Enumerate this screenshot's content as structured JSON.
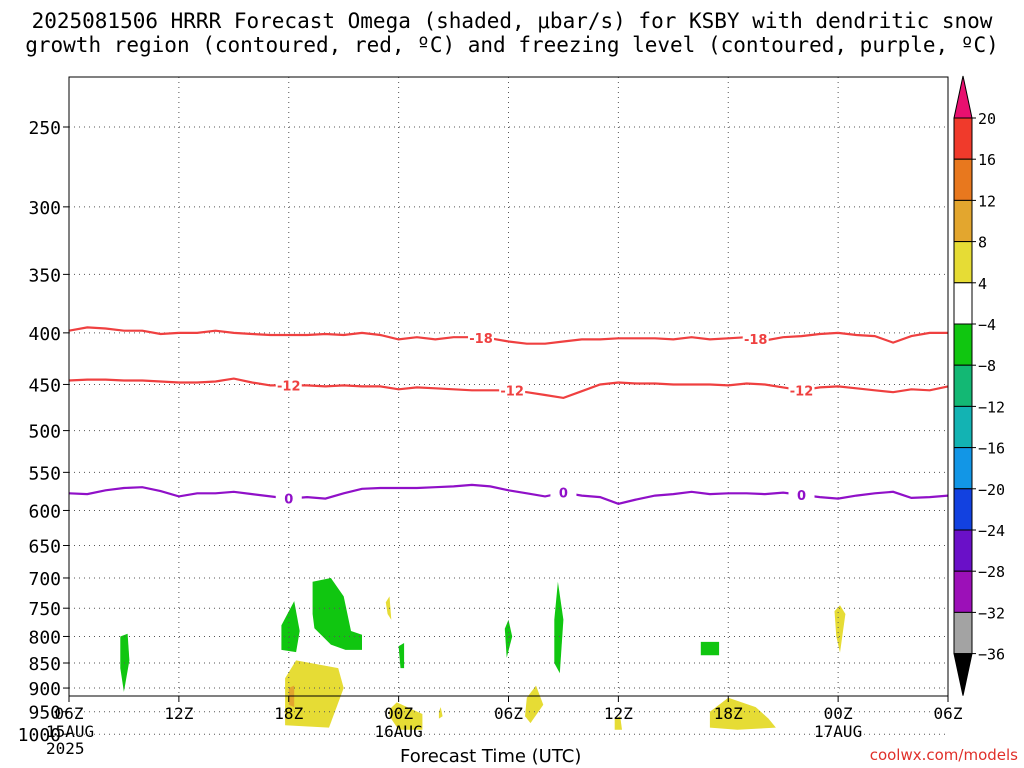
{
  "title": {
    "line1": "2025081506 HRRR Forecast Omega (shaded, μbar/s) for KSBY with dendritic snow",
    "line2": "growth region (contoured, red, ºC) and freezing level (contoured, purple, ºC)"
  },
  "xlabel": "Forecast Time (UTC)",
  "credit": "coolwx.com/models",
  "chart_data": {
    "type": "heatmap",
    "x_ticks": [
      {
        "hour": 0,
        "label": "06Z",
        "sub1": "15AUG",
        "sub2": "2025"
      },
      {
        "hour": 6,
        "label": "12Z"
      },
      {
        "hour": 12,
        "label": "18Z"
      },
      {
        "hour": 18,
        "label": "00Z",
        "sub1": "16AUG"
      },
      {
        "hour": 24,
        "label": "06Z"
      },
      {
        "hour": 30,
        "label": "12Z"
      },
      {
        "hour": 36,
        "label": "18Z"
      },
      {
        "hour": 42,
        "label": "00Z",
        "sub1": "17AUG"
      },
      {
        "hour": 48,
        "label": "06Z"
      }
    ],
    "xlim": [
      0,
      48
    ],
    "y_levels": [
      250,
      300,
      350,
      400,
      450,
      500,
      550,
      600,
      650,
      700,
      750,
      800,
      850,
      900,
      950,
      1000
    ],
    "ylabel_unit": "hPa",
    "ylim": [
      200,
      1025
    ],
    "y_scale": "log",
    "grid": true,
    "colorbar": {
      "ticks": [
        "20",
        "16",
        "12",
        "8",
        "4",
        "−4",
        "−8",
        "−12",
        "−16",
        "−20",
        "−24",
        "−28",
        "−32",
        "−36"
      ],
      "colors": [
        "#e8106f",
        "#f03a2b",
        "#e8781e",
        "#e3a62e",
        "#e6dc35",
        "#ffffff",
        "#10c610",
        "#13b874",
        "#13b3b3",
        "#1296e6",
        "#1241e0",
        "#6a10c8",
        "#9c10b8",
        "#a3a3a3",
        "#000000"
      ]
    },
    "contours": [
      {
        "color": "#ef4040",
        "label": "-18",
        "label_x": [
          22.5,
          37.5
        ],
        "points": [
          [
            0,
            398
          ],
          [
            1,
            395
          ],
          [
            2,
            396
          ],
          [
            3,
            398
          ],
          [
            4,
            398
          ],
          [
            5,
            401
          ],
          [
            6,
            400
          ],
          [
            7,
            400
          ],
          [
            8,
            398
          ],
          [
            9,
            400
          ],
          [
            10,
            401
          ],
          [
            11,
            402
          ],
          [
            12,
            402
          ],
          [
            13,
            402
          ],
          [
            14,
            401
          ],
          [
            15,
            402
          ],
          [
            16,
            400
          ],
          [
            17,
            402
          ],
          [
            18,
            406
          ],
          [
            19,
            404
          ],
          [
            20,
            406
          ],
          [
            21,
            404
          ],
          [
            22,
            404
          ],
          [
            23,
            405
          ],
          [
            24,
            408
          ],
          [
            25,
            410
          ],
          [
            26,
            410
          ],
          [
            27,
            408
          ],
          [
            28,
            406
          ],
          [
            29,
            406
          ],
          [
            30,
            405
          ],
          [
            31,
            405
          ],
          [
            32,
            405
          ],
          [
            33,
            406
          ],
          [
            34,
            404
          ],
          [
            35,
            406
          ],
          [
            36,
            405
          ],
          [
            37,
            404
          ],
          [
            38,
            407
          ],
          [
            39,
            404
          ],
          [
            40,
            403
          ],
          [
            41,
            401
          ],
          [
            42,
            400
          ],
          [
            43,
            402
          ],
          [
            44,
            403
          ],
          [
            45,
            409
          ],
          [
            46,
            403
          ],
          [
            47,
            400
          ],
          [
            48,
            400
          ]
        ]
      },
      {
        "color": "#ef4040",
        "label": "-12",
        "label_x": [
          12.0,
          24.2,
          40.0
        ],
        "points": [
          [
            0,
            446
          ],
          [
            1,
            445
          ],
          [
            2,
            445
          ],
          [
            3,
            446
          ],
          [
            4,
            446
          ],
          [
            5,
            447
          ],
          [
            6,
            448
          ],
          [
            7,
            448
          ],
          [
            8,
            447
          ],
          [
            9,
            444
          ],
          [
            10,
            448
          ],
          [
            11,
            451
          ],
          [
            12,
            451
          ],
          [
            13,
            451
          ],
          [
            14,
            452
          ],
          [
            15,
            451
          ],
          [
            16,
            452
          ],
          [
            17,
            452
          ],
          [
            18,
            455
          ],
          [
            19,
            453
          ],
          [
            20,
            454
          ],
          [
            21,
            455
          ],
          [
            22,
            456
          ],
          [
            23,
            456
          ],
          [
            24,
            456
          ],
          [
            25,
            458
          ],
          [
            26,
            461
          ],
          [
            27,
            464
          ],
          [
            28,
            457
          ],
          [
            29,
            450
          ],
          [
            30,
            448
          ],
          [
            31,
            449
          ],
          [
            32,
            449
          ],
          [
            33,
            450
          ],
          [
            34,
            450
          ],
          [
            35,
            450
          ],
          [
            36,
            451
          ],
          [
            37,
            449
          ],
          [
            38,
            450
          ],
          [
            39,
            453
          ],
          [
            40,
            456
          ],
          [
            41,
            453
          ],
          [
            42,
            452
          ],
          [
            43,
            454
          ],
          [
            44,
            456
          ],
          [
            45,
            458
          ],
          [
            46,
            455
          ],
          [
            47,
            456
          ],
          [
            48,
            452
          ]
        ]
      },
      {
        "color": "#9010c8",
        "label": "0",
        "label_x": [
          12.0,
          27.0,
          40.0
        ],
        "points": [
          [
            0,
            577
          ],
          [
            1,
            578
          ],
          [
            2,
            573
          ],
          [
            3,
            570
          ],
          [
            4,
            569
          ],
          [
            5,
            574
          ],
          [
            6,
            581
          ],
          [
            7,
            577
          ],
          [
            8,
            577
          ],
          [
            9,
            575
          ],
          [
            10,
            578
          ],
          [
            11,
            581
          ],
          [
            12,
            584
          ],
          [
            13,
            582
          ],
          [
            14,
            584
          ],
          [
            15,
            577
          ],
          [
            16,
            571
          ],
          [
            17,
            570
          ],
          [
            18,
            570
          ],
          [
            19,
            570
          ],
          [
            20,
            569
          ],
          [
            21,
            568
          ],
          [
            22,
            566
          ],
          [
            23,
            568
          ],
          [
            24,
            573
          ],
          [
            25,
            577
          ],
          [
            26,
            581
          ],
          [
            27,
            576
          ],
          [
            28,
            580
          ],
          [
            29,
            582
          ],
          [
            30,
            591
          ],
          [
            31,
            585
          ],
          [
            32,
            580
          ],
          [
            33,
            578
          ],
          [
            34,
            575
          ],
          [
            35,
            578
          ],
          [
            36,
            577
          ],
          [
            37,
            577
          ],
          [
            38,
            578
          ],
          [
            39,
            576
          ],
          [
            40,
            579
          ],
          [
            41,
            582
          ],
          [
            42,
            584
          ],
          [
            43,
            580
          ],
          [
            44,
            577
          ],
          [
            45,
            575
          ],
          [
            46,
            583
          ],
          [
            47,
            582
          ],
          [
            48,
            580
          ]
        ]
      }
    ],
    "shaded_regions": [
      {
        "value": "-4 to -8",
        "color": "#10c610",
        "points": [
          [
            2.8,
            800
          ],
          [
            3.2,
            795
          ],
          [
            3.3,
            845
          ],
          [
            3.0,
            908
          ],
          [
            2.8,
            860
          ]
        ]
      },
      {
        "value": "-4 to -8",
        "color": "#10c610",
        "points": [
          [
            11.6,
            780
          ],
          [
            12.3,
            738
          ],
          [
            12.6,
            790
          ],
          [
            12.4,
            829
          ],
          [
            11.6,
            825
          ]
        ]
      },
      {
        "value": "-4 to -8",
        "color": "#10c610",
        "points": [
          [
            13.3,
            706
          ],
          [
            14.3,
            700
          ],
          [
            15.0,
            730
          ],
          [
            15.4,
            790
          ],
          [
            16.0,
            797
          ],
          [
            16.0,
            825
          ],
          [
            15.1,
            825
          ],
          [
            14.3,
            815
          ],
          [
            13.4,
            785
          ],
          [
            13.3,
            760
          ]
        ]
      },
      {
        "value": "-4 to -8",
        "color": "#10c610",
        "points": [
          [
            18.0,
            818
          ],
          [
            18.3,
            812
          ],
          [
            18.3,
            860
          ],
          [
            18.1,
            860
          ]
        ]
      },
      {
        "value": "-4 to -8",
        "color": "#10c610",
        "points": [
          [
            23.8,
            786
          ],
          [
            24.0,
            770
          ],
          [
            24.2,
            800
          ],
          [
            23.9,
            840
          ]
        ]
      },
      {
        "value": "-4 to -8",
        "color": "#10c610",
        "points": [
          [
            26.5,
            770
          ],
          [
            26.7,
            706
          ],
          [
            27.0,
            770
          ],
          [
            26.8,
            870
          ],
          [
            26.5,
            850
          ]
        ]
      },
      {
        "value": "-4 to -8",
        "color": "#10c610",
        "points": [
          [
            34.5,
            810
          ],
          [
            35.5,
            810
          ],
          [
            35.5,
            835
          ],
          [
            34.5,
            835
          ]
        ]
      },
      {
        "value": "4 to 8",
        "color": "#e6dc35",
        "points": [
          [
            11.8,
            880
          ],
          [
            12.4,
            845
          ],
          [
            14.7,
            860
          ],
          [
            15.0,
            900
          ],
          [
            14.2,
            985
          ],
          [
            11.8,
            980
          ]
        ]
      },
      {
        "value": "4 to 8",
        "color": "#e6dc35",
        "points": [
          [
            17.3,
            740
          ],
          [
            17.5,
            730
          ],
          [
            17.6,
            770
          ],
          [
            17.4,
            760
          ]
        ]
      },
      {
        "value": "4 to 8",
        "color": "#e6dc35",
        "points": [
          [
            17.5,
            945
          ],
          [
            17.9,
            930
          ],
          [
            19.3,
            955
          ],
          [
            19.3,
            990
          ],
          [
            18.0,
            990
          ],
          [
            17.5,
            960
          ]
        ]
      },
      {
        "value": "4 to 8",
        "color": "#e6dc35",
        "points": [
          [
            20.2,
            950
          ],
          [
            20.3,
            940
          ],
          [
            20.4,
            960
          ],
          [
            20.2,
            965
          ]
        ]
      },
      {
        "value": "4 to 8",
        "color": "#e6dc35",
        "points": [
          [
            25.0,
            920
          ],
          [
            25.5,
            895
          ],
          [
            25.9,
            935
          ],
          [
            25.2,
            975
          ],
          [
            24.9,
            960
          ]
        ]
      },
      {
        "value": "4 to 8",
        "color": "#e6dc35",
        "points": [
          [
            29.8,
            965
          ],
          [
            30.1,
            960
          ],
          [
            30.2,
            990
          ],
          [
            29.8,
            990
          ]
        ]
      },
      {
        "value": "4 to 8",
        "color": "#e6dc35",
        "points": [
          [
            35.0,
            950
          ],
          [
            36.0,
            920
          ],
          [
            37.5,
            940
          ],
          [
            38.2,
            965
          ],
          [
            38.6,
            985
          ],
          [
            36.5,
            990
          ],
          [
            35.0,
            985
          ]
        ]
      },
      {
        "value": "4 to 8",
        "color": "#e6dc35",
        "points": [
          [
            41.8,
            755
          ],
          [
            42.1,
            745
          ],
          [
            42.4,
            760
          ],
          [
            42.1,
            830
          ],
          [
            41.9,
            800
          ]
        ]
      },
      {
        "value": "8 to 12",
        "color": "#e3a62e",
        "points": [
          [
            12.0,
            900
          ],
          [
            12.3,
            895
          ],
          [
            12.3,
            940
          ],
          [
            12.0,
            935
          ]
        ]
      }
    ],
    "ground": {
      "color": "#a0522d",
      "from_pressure": 1012
    }
  }
}
